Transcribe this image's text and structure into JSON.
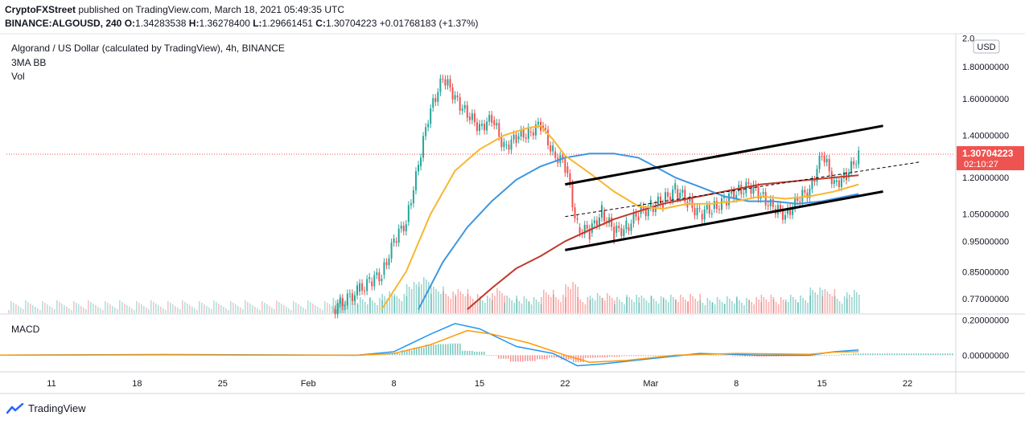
{
  "header": {
    "publisher": "CryptoFXStreet",
    "published_text": "published on TradingView.com, March 18, 2021 05:49:35 UTC",
    "symbol": "BINANCE:ALGOUSD, 240",
    "ohlc": [
      {
        "k": "O:",
        "v": "1.34283538"
      },
      {
        "k": "H:",
        "v": "1.36278400"
      },
      {
        "k": "L:",
        "v": "1.29661451"
      },
      {
        "k": "C:",
        "v": "1.30704223"
      }
    ],
    "change": "+0.01768183 (+1.37%)"
  },
  "legend": {
    "title": "Algorand / US Dollar (calculated by TradingView), 4h, BINANCE",
    "indicator": "3MA BB",
    "volume": "Vol",
    "macd": "MACD"
  },
  "currency_badge": "USD",
  "last_price": {
    "price": "1.30704223",
    "countdown": "02:10:27",
    "color": "#ef5350"
  },
  "branding": "TradingView",
  "colors": {
    "up": "#26a69a",
    "down": "#ef5350",
    "ma_fast": "#f7b731",
    "ma_mid": "#3d97e0",
    "ma_slow": "#c0392b",
    "channel": "#000000",
    "macd": "#2196f3",
    "signal": "#ff9800"
  },
  "chart_data": {
    "type": "line",
    "x": [
      "Jan 11",
      "Jan 18",
      "Jan 25",
      "Feb",
      "Feb 8",
      "Feb 15",
      "Feb 22",
      "Mar",
      "Mar 8",
      "Mar 15",
      "Mar 22"
    ],
    "x_tick_labels": [
      "11",
      "18",
      "25",
      "Feb",
      "8",
      "15",
      "22",
      "Mar",
      "8",
      "15",
      "22"
    ],
    "price_axis": {
      "tick_labels": [
        "2.0",
        "1.80000000",
        "1.60000000",
        "1.40000000",
        "1.20000000",
        "1.05000000",
        "0.95000000",
        "0.85000000",
        "0.77000000"
      ],
      "scale": "log",
      "ylim": [
        0.73,
        2.02
      ]
    },
    "macd_axis": {
      "tick_labels": [
        "0.20000000",
        "0.00000000"
      ],
      "ylim": [
        -0.09,
        0.23
      ]
    },
    "series": [
      {
        "role": "close",
        "points": [
          [
            "Feb 3",
            0.74
          ],
          [
            "Feb 5",
            0.79
          ],
          [
            "Feb 6",
            0.82
          ],
          [
            "Feb 7",
            0.84
          ],
          [
            "Feb 8",
            0.95
          ],
          [
            "Feb 9",
            1.02
          ],
          [
            "Feb 10",
            1.25
          ],
          [
            "Feb 11",
            1.55
          ],
          [
            "Feb 12",
            1.72
          ],
          [
            "Feb 13",
            1.62
          ],
          [
            "Feb 14",
            1.5
          ],
          [
            "Feb 15",
            1.45
          ],
          [
            "Feb 16",
            1.48
          ],
          [
            "Feb 17",
            1.35
          ],
          [
            "Feb 18",
            1.38
          ],
          [
            "Feb 19",
            1.42
          ],
          [
            "Feb 20",
            1.45
          ],
          [
            "Feb 21",
            1.32
          ],
          [
            "Feb 22",
            1.25
          ],
          [
            "Feb 23",
            1.0
          ],
          [
            "Feb 24",
            0.98
          ],
          [
            "Feb 25",
            1.06
          ],
          [
            "Feb 26",
            0.98
          ],
          [
            "Feb 27",
            1.0
          ],
          [
            "Feb 28",
            1.05
          ],
          [
            "Mar 1",
            1.08
          ],
          [
            "Mar 2",
            1.1
          ],
          [
            "Mar 3",
            1.15
          ],
          [
            "Mar 4",
            1.1
          ],
          [
            "Mar 5",
            1.05
          ],
          [
            "Mar 6",
            1.07
          ],
          [
            "Mar 7",
            1.1
          ],
          [
            "Mar 8",
            1.14
          ],
          [
            "Mar 9",
            1.16
          ],
          [
            "Mar 10",
            1.13
          ],
          [
            "Mar 11",
            1.07
          ],
          [
            "Mar 12",
            1.05
          ],
          [
            "Mar 13",
            1.1
          ],
          [
            "Mar 14",
            1.15
          ],
          [
            "Mar 15",
            1.3
          ],
          [
            "Mar 16",
            1.18
          ],
          [
            "Mar 17",
            1.2
          ],
          [
            "Mar 18",
            1.31
          ]
        ]
      },
      {
        "role": "ma_fast",
        "points": [
          [
            "Feb 7",
            0.74
          ],
          [
            "Feb 9",
            0.85
          ],
          [
            "Feb 11",
            1.05
          ],
          [
            "Feb 13",
            1.23
          ],
          [
            "Feb 15",
            1.33
          ],
          [
            "Feb 17",
            1.4
          ],
          [
            "Feb 19",
            1.44
          ],
          [
            "Feb 20",
            1.45
          ],
          [
            "Feb 21",
            1.38
          ],
          [
            "Feb 22",
            1.3
          ],
          [
            "Feb 24",
            1.22
          ],
          [
            "Feb 26",
            1.14
          ],
          [
            "Feb 28",
            1.08
          ],
          [
            "Mar 2",
            1.07
          ],
          [
            "Mar 4",
            1.09
          ],
          [
            "Mar 6",
            1.09
          ],
          [
            "Mar 8",
            1.1
          ],
          [
            "Mar 10",
            1.12
          ],
          [
            "Mar 12",
            1.11
          ],
          [
            "Mar 14",
            1.12
          ],
          [
            "Mar 16",
            1.14
          ],
          [
            "Mar 18",
            1.17
          ]
        ]
      },
      {
        "role": "ma_mid",
        "points": [
          [
            "Feb 10",
            0.74
          ],
          [
            "Feb 12",
            0.88
          ],
          [
            "Feb 14",
            1.0
          ],
          [
            "Feb 16",
            1.1
          ],
          [
            "Feb 18",
            1.19
          ],
          [
            "Feb 20",
            1.25
          ],
          [
            "Feb 22",
            1.29
          ],
          [
            "Feb 24",
            1.31
          ],
          [
            "Feb 26",
            1.31
          ],
          [
            "Feb 28",
            1.29
          ],
          [
            "Mar 1",
            1.26
          ],
          [
            "Mar 3",
            1.2
          ],
          [
            "Mar 5",
            1.16
          ],
          [
            "Mar 7",
            1.12
          ],
          [
            "Mar 9",
            1.1
          ],
          [
            "Mar 11",
            1.1
          ],
          [
            "Mar 13",
            1.09
          ],
          [
            "Mar 15",
            1.1
          ],
          [
            "Mar 17",
            1.12
          ],
          [
            "Mar 18",
            1.13
          ]
        ]
      },
      {
        "role": "ma_slow",
        "points": [
          [
            "Feb 14",
            0.74
          ],
          [
            "Feb 16",
            0.8
          ],
          [
            "Feb 18",
            0.86
          ],
          [
            "Feb 20",
            0.9
          ],
          [
            "Feb 22",
            0.95
          ],
          [
            "Feb 24",
            0.99
          ],
          [
            "Feb 26",
            1.03
          ],
          [
            "Feb 28",
            1.06
          ],
          [
            "Mar 2",
            1.09
          ],
          [
            "Mar 4",
            1.11
          ],
          [
            "Mar 6",
            1.13
          ],
          [
            "Mar 8",
            1.15
          ],
          [
            "Mar 10",
            1.17
          ],
          [
            "Mar 12",
            1.18
          ],
          [
            "Mar 14",
            1.19
          ],
          [
            "Mar 16",
            1.2
          ],
          [
            "Mar 18",
            1.21
          ]
        ]
      },
      {
        "role": "channel_upper",
        "points": [
          [
            "Feb 22",
            1.17
          ],
          [
            "Mar 20",
            1.45
          ]
        ]
      },
      {
        "role": "channel_lower",
        "points": [
          [
            "Feb 22",
            0.92
          ],
          [
            "Mar 20",
            1.14
          ]
        ]
      },
      {
        "role": "channel_mid",
        "points": [
          [
            "Feb 22",
            1.04
          ],
          [
            "Mar 23",
            1.27
          ]
        ]
      },
      {
        "role": "macd",
        "points": [
          [
            "Jan 6",
            0.0
          ],
          [
            "Jan 20",
            0.004
          ],
          [
            "Feb 5",
            0.0
          ],
          [
            "Feb 8",
            0.02
          ],
          [
            "Feb 11",
            0.12
          ],
          [
            "Feb 13",
            0.18
          ],
          [
            "Feb 15",
            0.15
          ],
          [
            "Feb 18",
            0.05
          ],
          [
            "Feb 21",
            0.01
          ],
          [
            "Feb 23",
            -0.06
          ],
          [
            "Feb 25",
            -0.05
          ],
          [
            "Mar 1",
            -0.02
          ],
          [
            "Mar 5",
            0.01
          ],
          [
            "Mar 10",
            0.0
          ],
          [
            "Mar 14",
            0.0
          ],
          [
            "Mar 16",
            0.02
          ],
          [
            "Mar 18",
            0.03
          ]
        ]
      },
      {
        "role": "signal",
        "points": [
          [
            "Jan 6",
            0.0
          ],
          [
            "Jan 20",
            0.002
          ],
          [
            "Feb 5",
            0.0
          ],
          [
            "Feb 8",
            0.01
          ],
          [
            "Feb 11",
            0.06
          ],
          [
            "Feb 14",
            0.14
          ],
          [
            "Feb 16",
            0.12
          ],
          [
            "Feb 19",
            0.07
          ],
          [
            "Feb 22",
            0.0
          ],
          [
            "Feb 24",
            -0.04
          ],
          [
            "Feb 27",
            -0.03
          ],
          [
            "Mar 3",
            0.0
          ],
          [
            "Mar 8",
            0.01
          ],
          [
            "Mar 14",
            0.005
          ],
          [
            "Mar 16",
            0.018
          ],
          [
            "Mar 18",
            0.02
          ]
        ]
      }
    ]
  }
}
